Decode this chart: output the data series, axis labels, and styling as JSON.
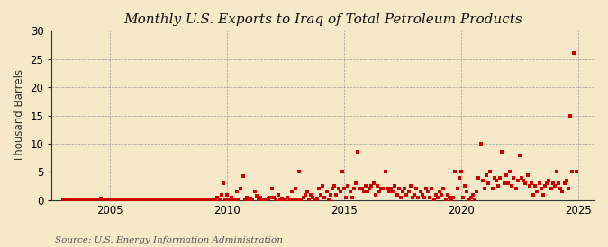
{
  "title": "Monthly U.S. Exports to Iraq of Total Petroleum Products",
  "ylabel": "Thousand Barrels",
  "source_text": "Source: U.S. Energy Information Administration",
  "background_color": "#f5e9c8",
  "plot_bg_color": "#f5e9c8",
  "marker_color": "#cc0000",
  "marker": "s",
  "marker_size": 3.5,
  "xlim_start": 2002.5,
  "xlim_end": 2025.7,
  "ylim": [
    0,
    30
  ],
  "yticks": [
    0,
    5,
    10,
    15,
    20,
    25,
    30
  ],
  "xticks": [
    2005,
    2010,
    2015,
    2020,
    2025
  ],
  "title_fontsize": 11,
  "label_fontsize": 8.5,
  "tick_fontsize": 8.5,
  "source_fontsize": 7.5,
  "data_points": [
    [
      2003.0,
      0
    ],
    [
      2003.083,
      0
    ],
    [
      2003.167,
      0
    ],
    [
      2003.25,
      0
    ],
    [
      2003.333,
      0
    ],
    [
      2003.417,
      0
    ],
    [
      2003.5,
      0
    ],
    [
      2003.583,
      0
    ],
    [
      2003.667,
      0
    ],
    [
      2003.75,
      0
    ],
    [
      2003.833,
      0
    ],
    [
      2003.917,
      0
    ],
    [
      2004.0,
      0
    ],
    [
      2004.083,
      0
    ],
    [
      2004.167,
      0
    ],
    [
      2004.25,
      0
    ],
    [
      2004.333,
      0
    ],
    [
      2004.417,
      0
    ],
    [
      2004.5,
      0
    ],
    [
      2004.583,
      0.3
    ],
    [
      2004.667,
      0
    ],
    [
      2004.75,
      0.2
    ],
    [
      2004.833,
      0
    ],
    [
      2004.917,
      0
    ],
    [
      2005.0,
      0
    ],
    [
      2005.083,
      0
    ],
    [
      2005.167,
      0
    ],
    [
      2005.25,
      0
    ],
    [
      2005.333,
      0
    ],
    [
      2005.417,
      0
    ],
    [
      2005.5,
      0
    ],
    [
      2005.583,
      0
    ],
    [
      2005.667,
      0
    ],
    [
      2005.75,
      0
    ],
    [
      2005.833,
      0.1
    ],
    [
      2005.917,
      0
    ],
    [
      2006.0,
      0
    ],
    [
      2006.083,
      0
    ],
    [
      2006.167,
      0
    ],
    [
      2006.25,
      0
    ],
    [
      2006.333,
      0
    ],
    [
      2006.417,
      0
    ],
    [
      2006.5,
      0
    ],
    [
      2006.583,
      0
    ],
    [
      2006.667,
      0
    ],
    [
      2006.75,
      0
    ],
    [
      2006.833,
      0
    ],
    [
      2006.917,
      0
    ],
    [
      2007.0,
      0
    ],
    [
      2007.083,
      0
    ],
    [
      2007.167,
      0
    ],
    [
      2007.25,
      0
    ],
    [
      2007.333,
      0
    ],
    [
      2007.417,
      0
    ],
    [
      2007.5,
      0
    ],
    [
      2007.583,
      0
    ],
    [
      2007.667,
      0
    ],
    [
      2007.75,
      0
    ],
    [
      2007.833,
      0
    ],
    [
      2007.917,
      0
    ],
    [
      2008.0,
      0
    ],
    [
      2008.083,
      0
    ],
    [
      2008.167,
      0
    ],
    [
      2008.25,
      0
    ],
    [
      2008.333,
      0
    ],
    [
      2008.417,
      0
    ],
    [
      2008.5,
      0
    ],
    [
      2008.583,
      0
    ],
    [
      2008.667,
      0
    ],
    [
      2008.75,
      0
    ],
    [
      2008.833,
      0
    ],
    [
      2008.917,
      0
    ],
    [
      2009.0,
      0
    ],
    [
      2009.083,
      0
    ],
    [
      2009.167,
      0
    ],
    [
      2009.25,
      0
    ],
    [
      2009.333,
      0
    ],
    [
      2009.417,
      0
    ],
    [
      2009.5,
      0
    ],
    [
      2009.583,
      0.5
    ],
    [
      2009.667,
      0
    ],
    [
      2009.75,
      1.0
    ],
    [
      2009.833,
      3.0
    ],
    [
      2009.917,
      0
    ],
    [
      2010.0,
      1.0
    ],
    [
      2010.083,
      0
    ],
    [
      2010.167,
      0.5
    ],
    [
      2010.25,
      0
    ],
    [
      2010.333,
      0
    ],
    [
      2010.417,
      1.5
    ],
    [
      2010.5,
      0
    ],
    [
      2010.583,
      2.0
    ],
    [
      2010.667,
      4.2
    ],
    [
      2010.75,
      0
    ],
    [
      2010.833,
      0.5
    ],
    [
      2010.917,
      0
    ],
    [
      2011.0,
      0.3
    ],
    [
      2011.083,
      0
    ],
    [
      2011.167,
      1.5
    ],
    [
      2011.25,
      0.8
    ],
    [
      2011.333,
      0
    ],
    [
      2011.417,
      0.5
    ],
    [
      2011.5,
      0.2
    ],
    [
      2011.583,
      0
    ],
    [
      2011.667,
      0
    ],
    [
      2011.75,
      0.3
    ],
    [
      2011.833,
      0.5
    ],
    [
      2011.917,
      2.0
    ],
    [
      2012.0,
      0.5
    ],
    [
      2012.083,
      0
    ],
    [
      2012.167,
      1.0
    ],
    [
      2012.25,
      0
    ],
    [
      2012.333,
      0.3
    ],
    [
      2012.417,
      0
    ],
    [
      2012.5,
      0.2
    ],
    [
      2012.583,
      0.5
    ],
    [
      2012.667,
      0
    ],
    [
      2012.75,
      1.5
    ],
    [
      2012.833,
      0
    ],
    [
      2012.917,
      2.0
    ],
    [
      2013.0,
      0
    ],
    [
      2013.083,
      5.0
    ],
    [
      2013.167,
      0
    ],
    [
      2013.25,
      0.5
    ],
    [
      2013.333,
      1.0
    ],
    [
      2013.417,
      1.5
    ],
    [
      2013.5,
      0
    ],
    [
      2013.583,
      1.0
    ],
    [
      2013.667,
      0.5
    ],
    [
      2013.75,
      0
    ],
    [
      2013.833,
      0.3
    ],
    [
      2013.917,
      2.0
    ],
    [
      2014.0,
      1.0
    ],
    [
      2014.083,
      2.5
    ],
    [
      2014.167,
      0.5
    ],
    [
      2014.25,
      1.5
    ],
    [
      2014.333,
      0
    ],
    [
      2014.417,
      1.0
    ],
    [
      2014.5,
      2.0
    ],
    [
      2014.583,
      2.5
    ],
    [
      2014.667,
      1.0
    ],
    [
      2014.75,
      2.0
    ],
    [
      2014.833,
      1.5
    ],
    [
      2014.917,
      5.0
    ],
    [
      2015.0,
      2.0
    ],
    [
      2015.083,
      0.5
    ],
    [
      2015.167,
      2.5
    ],
    [
      2015.25,
      1.5
    ],
    [
      2015.333,
      0.5
    ],
    [
      2015.417,
      2.0
    ],
    [
      2015.5,
      3.0
    ],
    [
      2015.583,
      8.5
    ],
    [
      2015.667,
      2.0
    ],
    [
      2015.75,
      2.0
    ],
    [
      2015.833,
      1.5
    ],
    [
      2015.917,
      2.5
    ],
    [
      2016.0,
      1.5
    ],
    [
      2016.083,
      2.0
    ],
    [
      2016.167,
      2.5
    ],
    [
      2016.25,
      3.0
    ],
    [
      2016.333,
      1.0
    ],
    [
      2016.417,
      2.5
    ],
    [
      2016.5,
      1.5
    ],
    [
      2016.583,
      2.0
    ],
    [
      2016.667,
      2.0
    ],
    [
      2016.75,
      5.0
    ],
    [
      2016.833,
      2.0
    ],
    [
      2016.917,
      1.5
    ],
    [
      2017.0,
      2.0
    ],
    [
      2017.083,
      1.5
    ],
    [
      2017.167,
      2.5
    ],
    [
      2017.25,
      1.0
    ],
    [
      2017.333,
      2.0
    ],
    [
      2017.417,
      0.5
    ],
    [
      2017.5,
      1.5
    ],
    [
      2017.583,
      2.0
    ],
    [
      2017.667,
      1.0
    ],
    [
      2017.75,
      1.5
    ],
    [
      2017.833,
      2.5
    ],
    [
      2017.917,
      0.5
    ],
    [
      2018.0,
      1.0
    ],
    [
      2018.083,
      2.0
    ],
    [
      2018.167,
      0.5
    ],
    [
      2018.25,
      1.5
    ],
    [
      2018.333,
      1.0
    ],
    [
      2018.417,
      0.5
    ],
    [
      2018.5,
      2.0
    ],
    [
      2018.583,
      1.5
    ],
    [
      2018.667,
      0.5
    ],
    [
      2018.75,
      2.0
    ],
    [
      2018.833,
      0
    ],
    [
      2018.917,
      1.0
    ],
    [
      2019.0,
      0.5
    ],
    [
      2019.083,
      1.5
    ],
    [
      2019.167,
      1.0
    ],
    [
      2019.25,
      2.0
    ],
    [
      2019.333,
      0
    ],
    [
      2019.417,
      1.0
    ],
    [
      2019.5,
      0.5
    ],
    [
      2019.583,
      0
    ],
    [
      2019.667,
      0.5
    ],
    [
      2019.75,
      5.0
    ],
    [
      2019.833,
      2.0
    ],
    [
      2019.917,
      4.0
    ],
    [
      2020.0,
      5.0
    ],
    [
      2020.083,
      0.5
    ],
    [
      2020.167,
      2.5
    ],
    [
      2020.25,
      1.5
    ],
    [
      2020.333,
      0
    ],
    [
      2020.417,
      0.5
    ],
    [
      2020.5,
      1.0
    ],
    [
      2020.583,
      0
    ],
    [
      2020.667,
      1.5
    ],
    [
      2020.75,
      4.0
    ],
    [
      2020.833,
      10.0
    ],
    [
      2020.917,
      3.5
    ],
    [
      2021.0,
      2.0
    ],
    [
      2021.083,
      4.5
    ],
    [
      2021.167,
      3.0
    ],
    [
      2021.25,
      5.0
    ],
    [
      2021.333,
      2.0
    ],
    [
      2021.417,
      4.0
    ],
    [
      2021.5,
      3.5
    ],
    [
      2021.583,
      2.5
    ],
    [
      2021.667,
      4.0
    ],
    [
      2021.75,
      8.5
    ],
    [
      2021.833,
      3.0
    ],
    [
      2021.917,
      4.5
    ],
    [
      2022.0,
      3.0
    ],
    [
      2022.083,
      5.0
    ],
    [
      2022.167,
      2.5
    ],
    [
      2022.25,
      4.0
    ],
    [
      2022.333,
      2.0
    ],
    [
      2022.417,
      3.5
    ],
    [
      2022.5,
      8.0
    ],
    [
      2022.583,
      4.0
    ],
    [
      2022.667,
      3.5
    ],
    [
      2022.75,
      3.0
    ],
    [
      2022.833,
      4.5
    ],
    [
      2022.917,
      2.5
    ],
    [
      2023.0,
      3.0
    ],
    [
      2023.083,
      1.0
    ],
    [
      2023.167,
      2.5
    ],
    [
      2023.25,
      1.5
    ],
    [
      2023.333,
      3.0
    ],
    [
      2023.417,
      2.0
    ],
    [
      2023.5,
      1.0
    ],
    [
      2023.583,
      2.5
    ],
    [
      2023.667,
      3.0
    ],
    [
      2023.75,
      3.5
    ],
    [
      2023.833,
      2.0
    ],
    [
      2023.917,
      3.0
    ],
    [
      2024.0,
      2.5
    ],
    [
      2024.083,
      5.0
    ],
    [
      2024.167,
      3.0
    ],
    [
      2024.25,
      2.0
    ],
    [
      2024.333,
      1.5
    ],
    [
      2024.417,
      3.0
    ],
    [
      2024.5,
      3.5
    ],
    [
      2024.583,
      2.0
    ],
    [
      2024.667,
      15.0
    ],
    [
      2024.75,
      5.0
    ],
    [
      2024.833,
      26.0
    ],
    [
      2024.917,
      5.0
    ]
  ]
}
